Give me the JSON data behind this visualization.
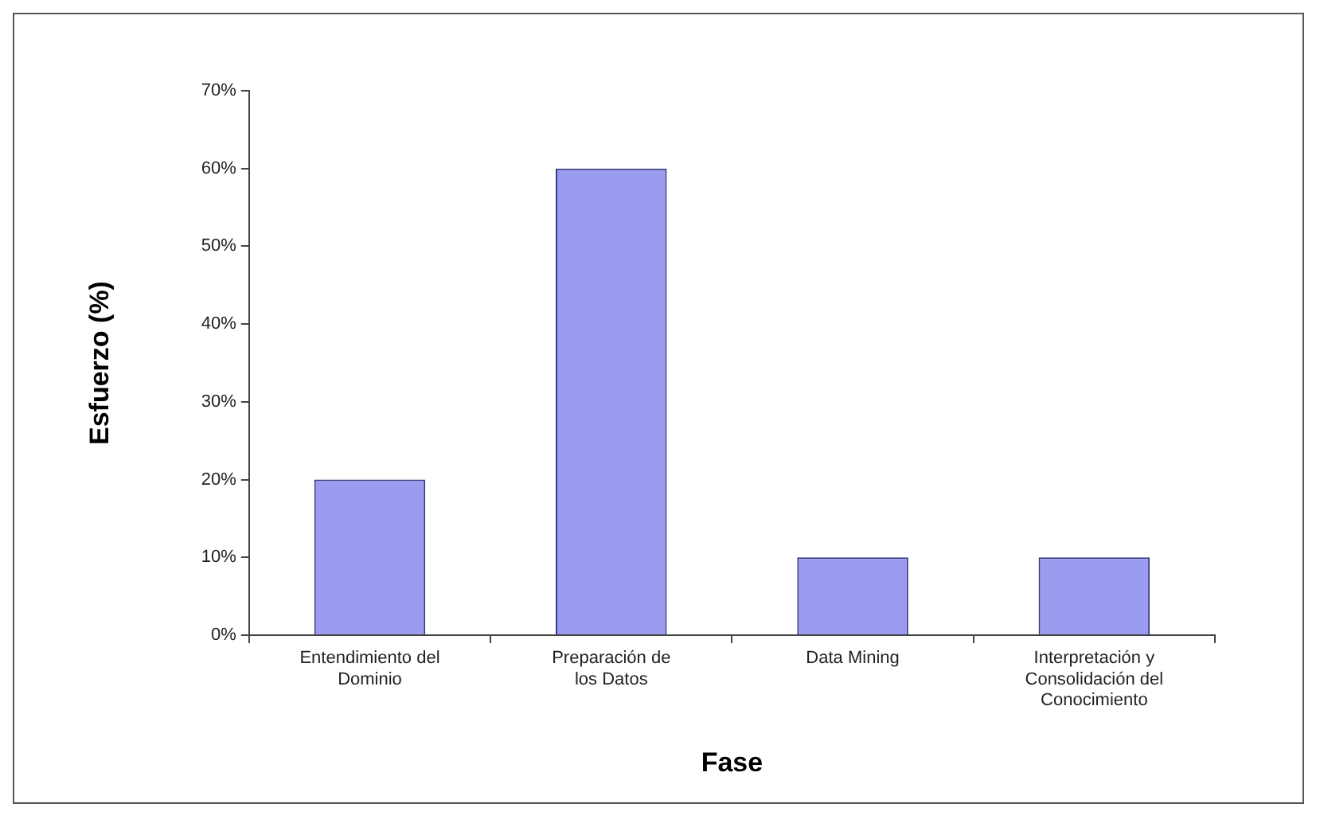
{
  "chart_data": {
    "type": "bar",
    "xlabel": "Fase",
    "ylabel": "Esfuerzo (%)",
    "categories": [
      "Entendimiento del Dominio",
      "Preparación de los Datos",
      "Data Mining",
      "Interpretación y Consolidación del Conocimiento"
    ],
    "values": [
      20,
      60,
      10,
      10
    ],
    "color": "#9b9bf0",
    "ylim": [
      0,
      70
    ],
    "yticks": [
      {
        "value": 0,
        "label": "0%"
      },
      {
        "value": 10,
        "label": "10%"
      },
      {
        "value": 20,
        "label": "20%"
      },
      {
        "value": 30,
        "label": "30%"
      },
      {
        "value": 40,
        "label": "40%"
      },
      {
        "value": 50,
        "label": "50%"
      },
      {
        "value": 60,
        "label": "60%"
      },
      {
        "value": 70,
        "label": "70%"
      }
    ],
    "grid": false,
    "legend": false
  }
}
